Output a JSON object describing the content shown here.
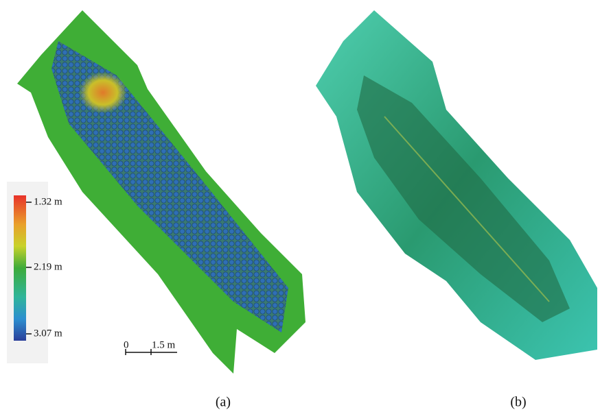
{
  "panel_a": {
    "colorbar": {
      "labels": [
        "1.32 m",
        "2.19 m",
        "3.07 m"
      ]
    },
    "scale_bar": {
      "start": "0",
      "end": "1.5 m"
    },
    "caption": "(a)"
  },
  "panel_b": {
    "caption": "(b)"
  }
}
